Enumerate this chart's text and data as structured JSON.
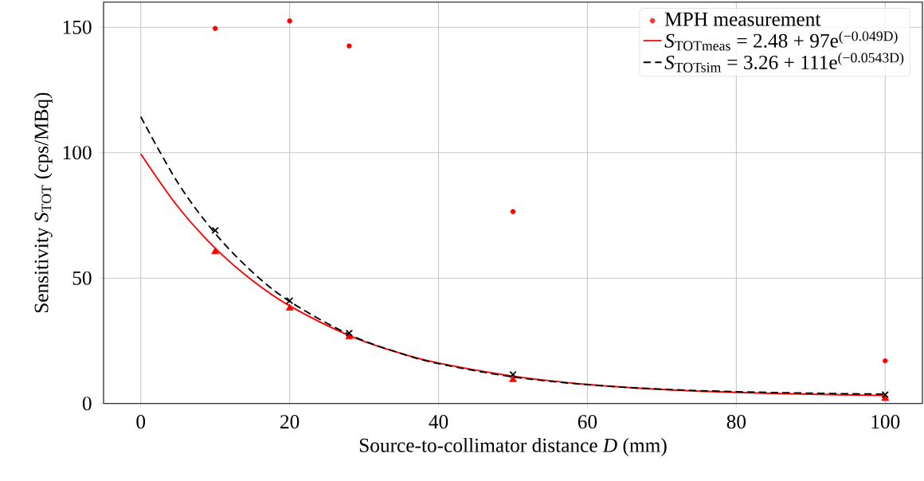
{
  "chart_data": {
    "type": "line",
    "xlabel": "Source-to-collimator distance *D* (mm)",
    "ylabel": "Sensitivity *S*$_{TOT}$ (cps/MBq)",
    "xlim": [
      -5,
      105
    ],
    "ylim": [
      0,
      160
    ],
    "xticks": [
      0,
      20,
      40,
      60,
      80,
      100
    ],
    "yticks": [
      0,
      50,
      100,
      150
    ],
    "grid": true,
    "legend": "top right",
    "series": [
      {
        "name": "MPH measurement",
        "type": "scatter",
        "marker": "circle",
        "color": "#ff0000",
        "x": [
          10,
          20,
          28,
          50,
          100
        ],
        "values": [
          149.5,
          152.5,
          142.5,
          76.5,
          17
        ]
      },
      {
        "name": "*S*$_{TOTmeas}$ = 2.48 + 97e$^{(−0.049D)}$",
        "line_style": "solid",
        "color": "#ff0000",
        "x": [
          0,
          5,
          10,
          15,
          20,
          28,
          35,
          40,
          50,
          60,
          70,
          80,
          90,
          100
        ],
        "values": [
          99.5,
          78.4,
          61.9,
          49.0,
          38.9,
          27.1,
          19.9,
          16.1,
          10.9,
          7.6,
          5.6,
          4.4,
          3.7,
          3.2
        ]
      },
      {
        "type": "scatter",
        "marker": "triangle",
        "color": "#ff0000",
        "x": [
          10,
          20,
          28,
          50,
          100
        ],
        "values": [
          60.5,
          38,
          26.5,
          9.5,
          2
        ]
      },
      {
        "name": "*S*$_{TOTsim}$ = 3.26 + 111e$^{(−0.0543D)}$",
        "line_style": "dashed",
        "color": "#000000",
        "x": [
          0,
          5,
          10,
          15,
          20,
          28,
          35,
          40,
          50,
          60,
          70,
          80,
          90,
          100
        ],
        "values": [
          114.3,
          87.9,
          67.8,
          52.4,
          40.7,
          27.5,
          19.9,
          15.9,
          10.6,
          7.5,
          5.7,
          4.7,
          4.1,
          3.7
        ]
      },
      {
        "type": "scatter",
        "marker": "cross",
        "color": "#000000",
        "x": [
          10,
          20,
          28,
          50,
          100
        ],
        "values": [
          69,
          41,
          28,
          11.5,
          3.5
        ]
      }
    ]
  }
}
